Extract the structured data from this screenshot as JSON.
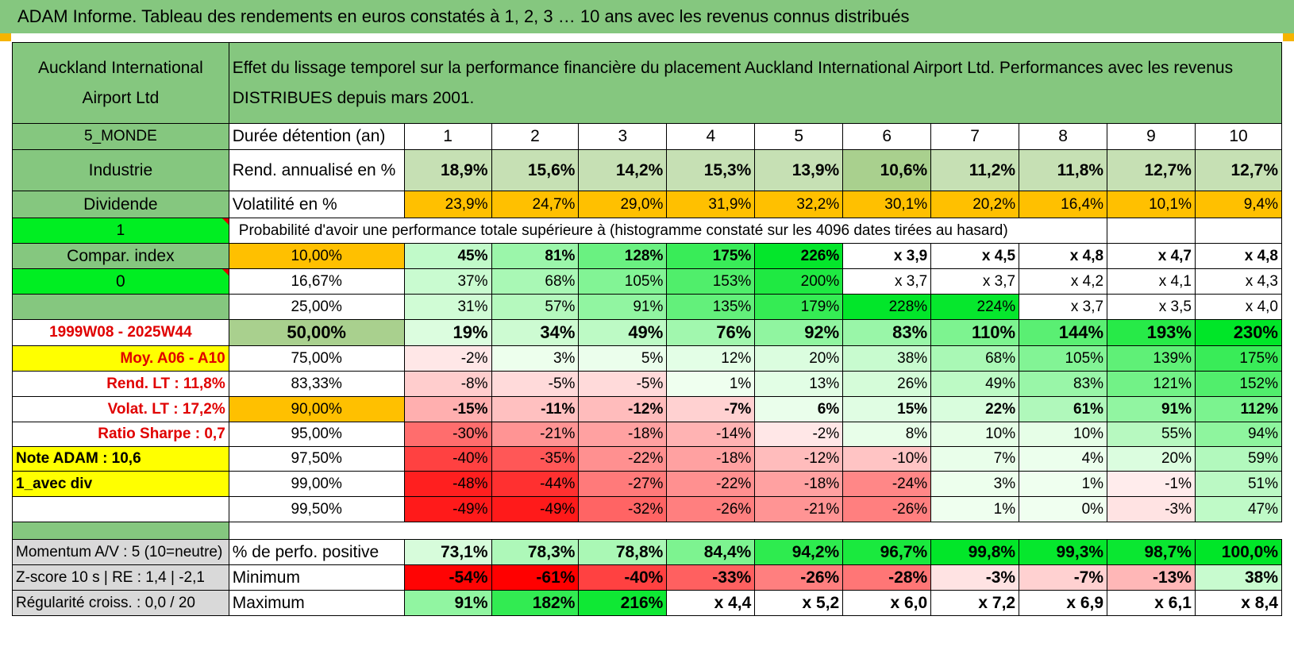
{
  "title": "ADAM Informe. Tableau des rendements en euros constatés à 1, 2, 3 … 10 ans avec les revenus connus distribués",
  "header": {
    "asset_name": "Auckland International Airport Ltd",
    "description": "Effet du lissage temporel sur la performance financière du placement Auckland International Airport Ltd. Performances avec les revenus DISTRIBUES depuis mars 2001."
  },
  "left_labels": {
    "zone": "5_MONDE",
    "sector": "Industrie",
    "dividend": "Dividende",
    "flag1": "1",
    "compar_index": "Compar. index",
    "flag0": "0",
    "blank": "",
    "period": "1999W08 - 2025W44",
    "moy": "Moy. A06 - A10",
    "rend_lt": "Rend. LT :    11,8%",
    "volat_lt": "Volat. LT :    17,2%",
    "sharpe": "Ratio Sharpe :     0,7",
    "note": "Note ADAM : 10,6",
    "avec_div": "1_avec div",
    "momentum": "Momentum A/V : 5 (10=neutre)",
    "zscore": "Z-score 10 s | RE : 1,4 | -2,1",
    "regularite": "Régularité croiss. : 0,0 / 20"
  },
  "row_labels": {
    "duree": "Durée détention (an)",
    "rend": "Rend. annualisé en %",
    "volat": "Volatilité en %",
    "proba": "Probabilité d'avoir une performance totale supérieure à (histogramme constaté sur les 4096 dates tirées au hasard)",
    "pct_positive": "% de perfo. positive",
    "minimum": "Minimum",
    "maximum": "Maximum"
  },
  "years": [
    "1",
    "2",
    "3",
    "4",
    "5",
    "6",
    "7",
    "8",
    "9",
    "10"
  ],
  "rendement": [
    "18,9%",
    "15,6%",
    "14,2%",
    "15,3%",
    "13,9%",
    "10,6%",
    "11,2%",
    "11,8%",
    "12,7%",
    "12,7%"
  ],
  "volatilite": [
    "23,9%",
    "24,7%",
    "29,0%",
    "31,9%",
    "32,2%",
    "30,1%",
    "20,2%",
    "16,4%",
    "10,1%",
    "9,4%"
  ],
  "prob_rows": [
    {
      "p": "10,00%",
      "v": [
        "45%",
        "81%",
        "128%",
        "175%",
        "226%",
        "x 3,9",
        "x 4,5",
        "x 4,8",
        "x 4,7",
        "x 4,8"
      ]
    },
    {
      "p": "16,67%",
      "v": [
        "37%",
        "68%",
        "105%",
        "153%",
        "200%",
        "x 3,7",
        "x 3,7",
        "x 4,2",
        "x 4,1",
        "x 4,3"
      ]
    },
    {
      "p": "25,00%",
      "v": [
        "31%",
        "57%",
        "91%",
        "135%",
        "179%",
        "228%",
        "224%",
        "x 3,7",
        "x 3,5",
        "x 4,0"
      ]
    },
    {
      "p": "50,00%",
      "v": [
        "19%",
        "34%",
        "49%",
        "76%",
        "92%",
        "83%",
        "110%",
        "144%",
        "193%",
        "230%"
      ]
    },
    {
      "p": "75,00%",
      "v": [
        "-2%",
        "3%",
        "5%",
        "12%",
        "20%",
        "38%",
        "68%",
        "105%",
        "139%",
        "175%"
      ]
    },
    {
      "p": "83,33%",
      "v": [
        "-8%",
        "-5%",
        "-5%",
        "1%",
        "13%",
        "26%",
        "49%",
        "83%",
        "121%",
        "152%"
      ]
    },
    {
      "p": "90,00%",
      "v": [
        "-15%",
        "-11%",
        "-12%",
        "-7%",
        "6%",
        "15%",
        "22%",
        "61%",
        "91%",
        "112%"
      ]
    },
    {
      "p": "95,00%",
      "v": [
        "-30%",
        "-21%",
        "-18%",
        "-14%",
        "-2%",
        "8%",
        "10%",
        "10%",
        "55%",
        "94%"
      ]
    },
    {
      "p": "97,50%",
      "v": [
        "-40%",
        "-35%",
        "-22%",
        "-18%",
        "-12%",
        "-10%",
        "7%",
        "4%",
        "20%",
        "59%"
      ]
    },
    {
      "p": "99,00%",
      "v": [
        "-48%",
        "-44%",
        "-27%",
        "-22%",
        "-18%",
        "-24%",
        "3%",
        "1%",
        "-1%",
        "51%"
      ]
    },
    {
      "p": "99,50%",
      "v": [
        "-49%",
        "-49%",
        "-32%",
        "-26%",
        "-21%",
        "-26%",
        "1%",
        "0%",
        "-3%",
        "47%"
      ]
    }
  ],
  "pct_positive": [
    "73,1%",
    "78,3%",
    "78,8%",
    "84,4%",
    "94,2%",
    "96,7%",
    "99,8%",
    "99,3%",
    "98,7%",
    "100,0%"
  ],
  "minimum": [
    "-54%",
    "-61%",
    "-40%",
    "-33%",
    "-26%",
    "-28%",
    "-3%",
    "-7%",
    "-13%",
    "38%"
  ],
  "maximum": [
    "91%",
    "182%",
    "216%",
    "x 4,4",
    "x 5,2",
    "x 6,0",
    "x 7,2",
    "x 6,9",
    "x 6,1",
    "x 8,4"
  ],
  "colors": {
    "header_green": "#85c77f",
    "orange": "#ffc000",
    "yellow": "#ffff00",
    "lime": "#00ee22",
    "label_red": "#e00000",
    "rend_green": "#c6e0b4",
    "rend_green_dark": "#a9d08e"
  }
}
